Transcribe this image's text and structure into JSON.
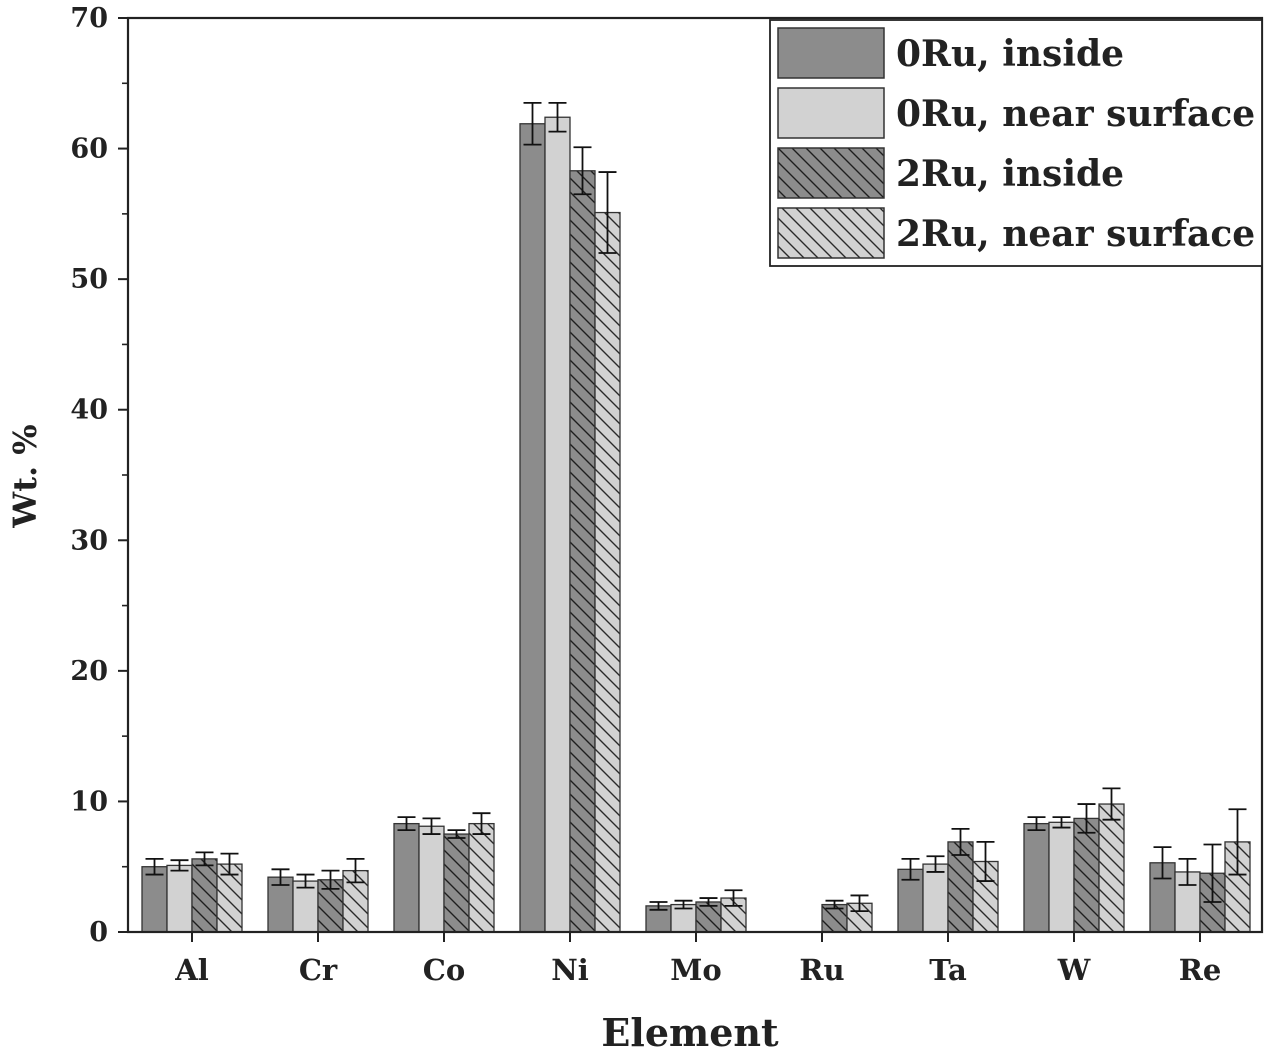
{
  "chart_data": {
    "type": "bar",
    "xlabel": "Element",
    "ylabel": "Wt. %",
    "ylim": [
      0,
      70
    ],
    "yticks": [
      0,
      10,
      20,
      30,
      40,
      50,
      60,
      70
    ],
    "categories": [
      "Al",
      "Cr",
      "Co",
      "Ni",
      "Mo",
      "Ru",
      "Ta",
      "W",
      "Re"
    ],
    "legend_position": "top-right",
    "grid": false,
    "series": [
      {
        "name": "0Ru, inside",
        "fill": "#8c8c8c",
        "pattern": "solid",
        "values": [
          5.0,
          4.2,
          8.3,
          61.9,
          2.0,
          null,
          4.8,
          8.3,
          5.3
        ],
        "errors": [
          0.6,
          0.6,
          0.5,
          1.6,
          0.3,
          null,
          0.8,
          0.5,
          1.2
        ]
      },
      {
        "name": "0Ru, near surface",
        "fill": "#d2d2d2",
        "pattern": "solid",
        "values": [
          5.1,
          3.9,
          8.1,
          62.4,
          2.1,
          null,
          5.2,
          8.4,
          4.6
        ],
        "errors": [
          0.4,
          0.5,
          0.6,
          1.1,
          0.3,
          null,
          0.6,
          0.4,
          1.0
        ]
      },
      {
        "name": "2Ru, inside",
        "fill": "#8c8c8c",
        "pattern": "hatch",
        "values": [
          5.6,
          4.0,
          7.5,
          58.3,
          2.3,
          2.1,
          6.9,
          8.7,
          4.5
        ],
        "errors": [
          0.5,
          0.7,
          0.3,
          1.8,
          0.3,
          0.3,
          1.0,
          1.1,
          2.2
        ]
      },
      {
        "name": "2Ru, near surface",
        "fill": "#d2d2d2",
        "pattern": "hatch",
        "values": [
          5.2,
          4.7,
          8.3,
          55.1,
          2.6,
          2.2,
          5.4,
          9.8,
          6.9
        ],
        "errors": [
          0.8,
          0.9,
          0.8,
          3.1,
          0.6,
          0.6,
          1.5,
          1.2,
          2.5
        ]
      }
    ]
  }
}
